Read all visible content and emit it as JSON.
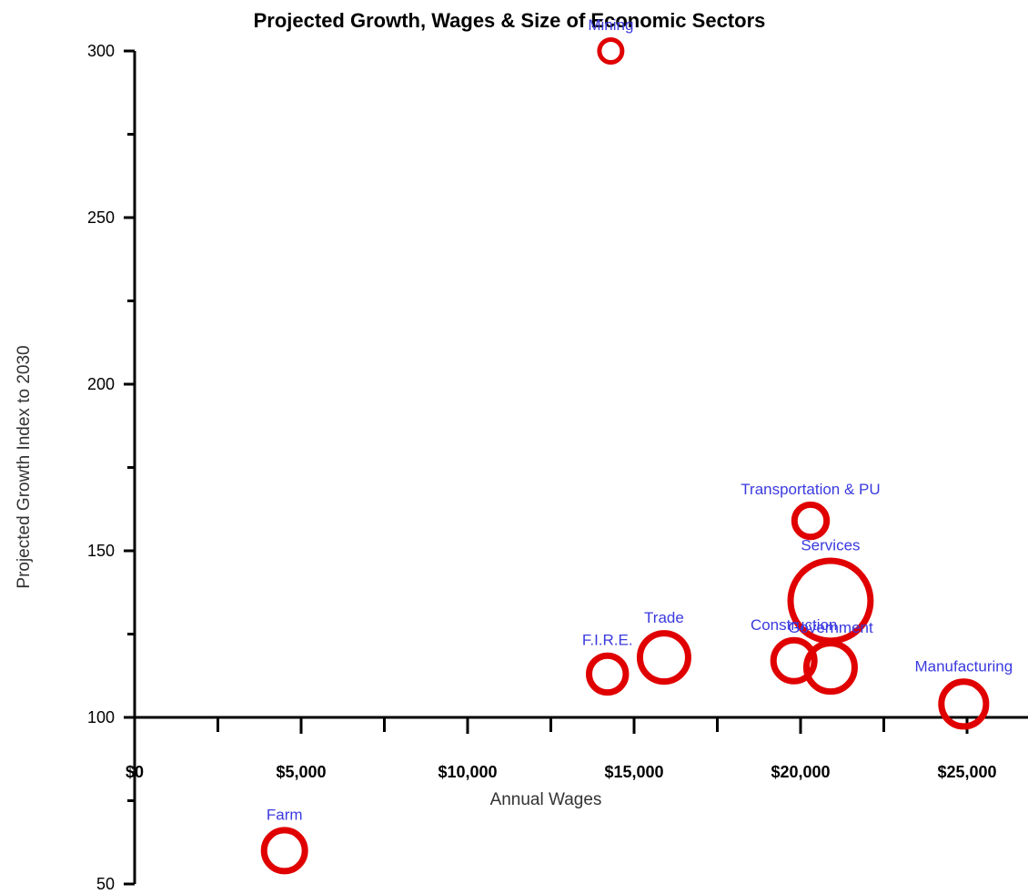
{
  "chart_data": {
    "type": "scatter",
    "title": "Projected Growth, Wages & Size of Economic Sectors",
    "xlabel": "Annual Wages",
    "ylabel": "Projected Growth Index to 2030",
    "xlim": [
      0,
      27500
    ],
    "ylim": [
      50,
      300
    ],
    "x_ticks": [
      0,
      5000,
      10000,
      15000,
      20000,
      25000
    ],
    "x_tick_labels": [
      "$0",
      "$5,000",
      "$10,000",
      "$15,000",
      "$20,000",
      "$25,000"
    ],
    "y_ticks": [
      50,
      100,
      150,
      200,
      250,
      300
    ],
    "y_tick_labels": [
      "50",
      "100",
      "150",
      "200",
      "250",
      "300"
    ],
    "x_axis_crosses_y_at": 100,
    "grid": false,
    "marker_color": "#e00000",
    "label_color": "#3a3adf",
    "points": [
      {
        "label": "Mining",
        "x": 14300,
        "y": 300,
        "size": 1
      },
      {
        "label": "Transportation & PU",
        "x": 20300,
        "y": 159,
        "size": 2
      },
      {
        "label": "Services",
        "x": 20900,
        "y": 135,
        "size": 10
      },
      {
        "label": "Trade",
        "x": 15900,
        "y": 118,
        "size": 4
      },
      {
        "label": "F.I.R.E.",
        "x": 14200,
        "y": 113,
        "size": 2.5
      },
      {
        "label": "Construction",
        "x": 19800,
        "y": 117,
        "size": 3
      },
      {
        "label": "Government",
        "x": 20900,
        "y": 115,
        "size": 4
      },
      {
        "label": "Manufacturing",
        "x": 24900,
        "y": 104,
        "size": 3.5
      },
      {
        "label": "Farm",
        "x": 4500,
        "y": 60,
        "size": 3
      }
    ]
  }
}
